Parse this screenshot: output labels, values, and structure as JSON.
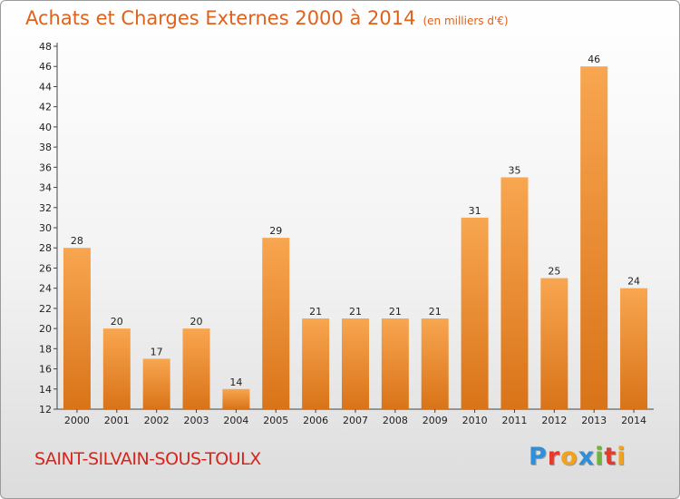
{
  "title": "Achats et Charges Externes 2000 à 2014",
  "subtitle": "(en milliers d'€)",
  "commune": "SAINT-SILVAIN-SOUS-TOULX",
  "logo": {
    "letters": [
      "P",
      "r",
      "o",
      "x",
      "i",
      "t",
      "i"
    ],
    "colors": [
      "#2f8fd8",
      "#e63a2e",
      "#f2a31b",
      "#2f8fd8",
      "#6fb33b",
      "#e63a2e",
      "#f2a31b"
    ]
  },
  "colors": {
    "bar_light": "#f8a650",
    "bar_dark": "#d97318",
    "title": "#e0611c",
    "commune": "#d9241b"
  },
  "chart_data": {
    "type": "bar",
    "categories": [
      "2000",
      "2001",
      "2002",
      "2003",
      "2004",
      "2005",
      "2006",
      "2007",
      "2008",
      "2009",
      "2010",
      "2011",
      "2012",
      "2013",
      "2014"
    ],
    "values": [
      28,
      20,
      17,
      20,
      14,
      29,
      21,
      21,
      21,
      21,
      31,
      35,
      25,
      46,
      24
    ],
    "title": "Achats et Charges Externes 2000 à 2014",
    "subtitle": "(en milliers d'€)",
    "xlabel": "",
    "ylabel": "",
    "ylim": [
      12,
      48
    ],
    "yticks": [
      12,
      14,
      16,
      18,
      20,
      22,
      24,
      26,
      28,
      30,
      32,
      34,
      36,
      38,
      40,
      42,
      44,
      46,
      48
    ],
    "grid": false,
    "legend": "none"
  }
}
